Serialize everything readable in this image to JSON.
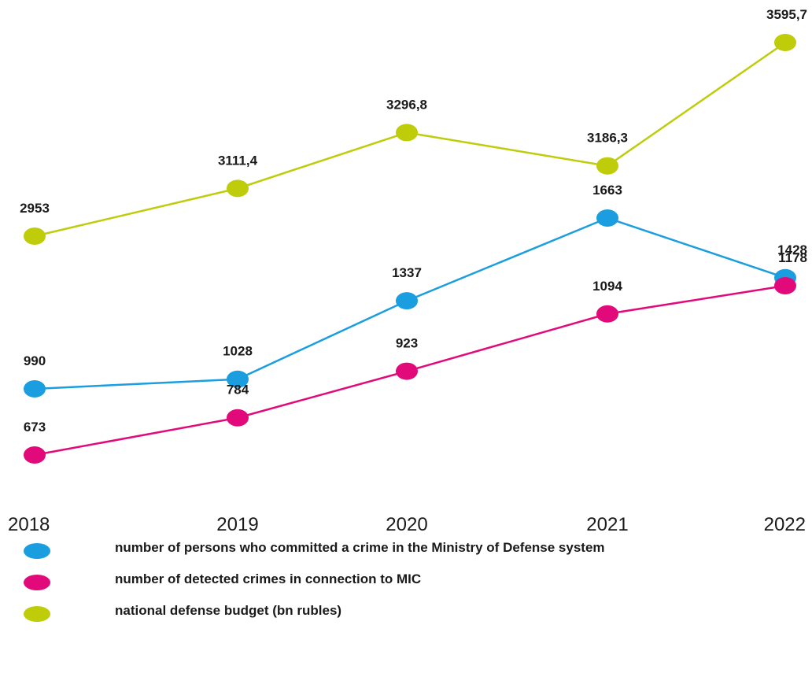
{
  "chart_data": {
    "type": "line",
    "categories": [
      "2018",
      "2019",
      "2020",
      "2021",
      "2022"
    ],
    "series": [
      {
        "name": "national defense budget (bn rubles)",
        "values": [
          2953,
          3111.4,
          3296.8,
          3186.3,
          3595.7
        ],
        "labels": [
          "2953",
          "3111,4",
          "3296,8",
          "3186,3",
          "3595,7"
        ],
        "color": "#bfcc0a"
      },
      {
        "name": "number of persons who committed a crime in the Ministry of Defense system",
        "values": [
          990,
          1028,
          1337,
          1663,
          1428
        ],
        "labels": [
          "990",
          "1028",
          "1337",
          "1663",
          "1428"
        ],
        "color": "#1a9ee0"
      },
      {
        "name": "number of detected crimes in connection to MIC",
        "values": [
          673,
          784,
          923,
          1094,
          1178
        ],
        "labels": [
          "673",
          "784",
          "923",
          "1094",
          "1178"
        ],
        "color": "#e20a7a"
      }
    ],
    "legend": {
      "position": "bottom",
      "items": [
        {
          "label": "number of persons who committed a crime in the Ministry of Defense system",
          "color": "#1a9ee0"
        },
        {
          "label": "number of detected crimes in connection to MIC",
          "color": "#e20a7a"
        },
        {
          "label": "national defense budget (bn rubles)",
          "color": "#bfcc0a"
        }
      ]
    },
    "title": "",
    "xlabel": "",
    "ylabel": "",
    "grid": false
  }
}
